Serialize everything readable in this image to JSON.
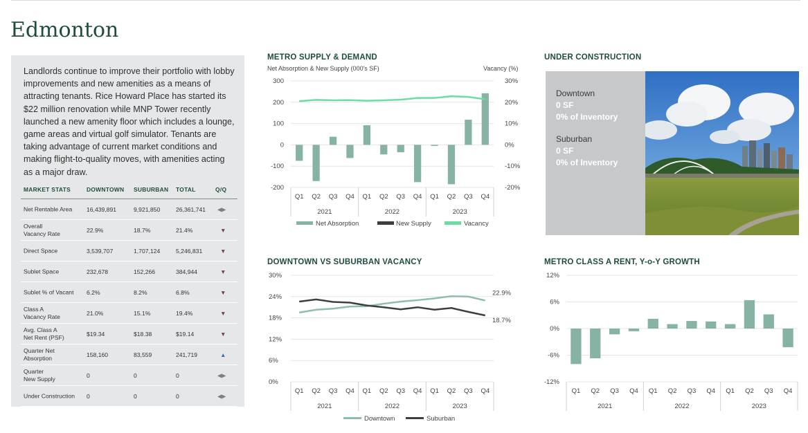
{
  "page": {
    "city": "Edmonton"
  },
  "intro": "Landlords continue to improve their portfolio with lobby improvements and new amenities as a means of attracting tenants. Rice Howard Place has started its $22 million renovation while MNP Tower recently launched a new amenity floor which includes a lounge, game areas and virtual golf simulator. Tenants are taking advantage of current market conditions and making flight-to-quality moves, with amenities acting as a major draw.",
  "market_stats": {
    "headers": [
      "MARKET STATS",
      "DOWNTOWN",
      "SUBURBAN",
      "TOTAL",
      "Q/Q"
    ],
    "rows": [
      {
        "label": "Net Rentable Area",
        "downtown": "16,439,891",
        "suburban": "9,921,850",
        "total": "26,361,741",
        "qq": "flat"
      },
      {
        "label": "Overall\nVacancy Rate",
        "downtown": "22.9%",
        "suburban": "18.7%",
        "total": "21.4%",
        "qq": "down"
      },
      {
        "label": "Direct Space",
        "downtown": "3,539,707",
        "suburban": "1,707,124",
        "total": "5,246,831",
        "qq": "down"
      },
      {
        "label": "Sublet Space",
        "downtown": "232,678",
        "suburban": "152,266",
        "total": "384,944",
        "qq": "down"
      },
      {
        "label": "Sublet % of Vacant",
        "downtown": "6.2%",
        "suburban": "8.2%",
        "total": "6.8%",
        "qq": "down"
      },
      {
        "label": "Class A\nVacancy Rate",
        "downtown": "21.0%",
        "suburban": "15.1%",
        "total": "19.4%",
        "qq": "down"
      },
      {
        "label": "Avg. Class A\nNet Rent (PSF)",
        "downtown": "$19.34",
        "suburban": "$18.38",
        "total": "$19.14",
        "qq": "down"
      },
      {
        "label": "Quarter Net\nAbsorption",
        "downtown": "158,160",
        "suburban": "83,559",
        "total": "241,719",
        "qq": "up"
      },
      {
        "label": "Quarter\nNew Supply",
        "downtown": "0",
        "suburban": "0",
        "total": "0",
        "qq": "flat"
      },
      {
        "label": "Under Construction",
        "downtown": "0",
        "suburban": "0",
        "total": "0",
        "qq": "flat"
      }
    ]
  },
  "colors": {
    "green_dark": "#1e4d3a",
    "bar": "#86b3a4",
    "vacancy": "#6edba1",
    "supply": "#3c3f41",
    "arrow_down": "#7a3b61",
    "arrow_up": "#3f6fb0",
    "arrow_flat": "#7d7d7d"
  },
  "under_construction": {
    "title": "UNDER CONSTRUCTION",
    "downtown_label": "Downtown",
    "downtown_sf": "0 SF",
    "downtown_inv": "0% of Inventory",
    "suburban_label": "Suburban",
    "suburban_sf": "0 SF",
    "suburban_inv": "0% of Inventory"
  },
  "chart_data": [
    {
      "id": "supply_demand",
      "type": "bar",
      "title": "METRO SUPPLY & DEMAND",
      "ylabel": "Net Absorption & New Supply (000's SF)",
      "y2label": "Vacancy (%)",
      "categories": [
        "Q1",
        "Q2",
        "Q3",
        "Q4",
        "Q1",
        "Q2",
        "Q3",
        "Q4",
        "Q1",
        "Q2",
        "Q3",
        "Q4"
      ],
      "groups": [
        "2021",
        "2022",
        "2023"
      ],
      "ylim": [
        -200,
        300
      ],
      "yticks": [
        300,
        200,
        100,
        0,
        -100,
        -200
      ],
      "y2lim": [
        -20,
        30
      ],
      "y2ticks": [
        "30%",
        "20%",
        "10%",
        "0%",
        "-10%",
        "-20%"
      ],
      "legend": [
        "Net Absorption",
        "New Supply",
        "Vacancy"
      ],
      "series": [
        {
          "name": "Net Absorption",
          "type": "bar",
          "values": [
            -75,
            -170,
            38,
            -62,
            92,
            -45,
            -35,
            -175,
            -5,
            -185,
            118,
            242
          ]
        },
        {
          "name": "New Supply",
          "type": "bar",
          "values": [
            0,
            0,
            0,
            0,
            0,
            0,
            0,
            0,
            0,
            0,
            0,
            0
          ]
        },
        {
          "name": "Vacancy",
          "type": "line",
          "values": [
            20.5,
            21.1,
            20.9,
            21.0,
            20.7,
            20.9,
            21.2,
            22.0,
            22.0,
            22.8,
            22.5,
            21.4
          ]
        }
      ]
    },
    {
      "id": "dt_sub_vacancy",
      "type": "line",
      "title": "DOWNTOWN VS SUBURBAN VACANCY",
      "categories": [
        "Q1",
        "Q2",
        "Q3",
        "Q4",
        "Q1",
        "Q2",
        "Q3",
        "Q4",
        "Q1",
        "Q2",
        "Q3",
        "Q4"
      ],
      "groups": [
        "2021",
        "2022",
        "2023"
      ],
      "ylim": [
        0,
        30
      ],
      "yticks": [
        "30%",
        "24%",
        "18%",
        "12%",
        "6%",
        "0%"
      ],
      "legend": [
        "Downtown",
        "Suburban"
      ],
      "end_labels": [
        "22.9%",
        "18.7%"
      ],
      "series": [
        {
          "name": "Downtown",
          "values": [
            19.5,
            20.3,
            20.6,
            21.2,
            21.3,
            22.0,
            22.6,
            23.0,
            23.5,
            24.1,
            24.0,
            22.9
          ]
        },
        {
          "name": "Suburban",
          "values": [
            22.6,
            23.2,
            22.5,
            22.3,
            21.5,
            21.0,
            20.4,
            21.0,
            20.3,
            20.8,
            19.7,
            18.7
          ]
        }
      ]
    },
    {
      "id": "class_a_rent",
      "type": "bar",
      "title": "METRO CLASS A RENT, Y-o-Y GROWTH",
      "categories": [
        "Q1",
        "Q2",
        "Q3",
        "Q4",
        "Q1",
        "Q2",
        "Q3",
        "Q4",
        "Q1",
        "Q2",
        "Q3",
        "Q4"
      ],
      "groups": [
        "2021",
        "2022",
        "2023"
      ],
      "ylim": [
        -12,
        12
      ],
      "yticks": [
        "12%",
        "6%",
        "0%",
        "-6%",
        "-12%"
      ],
      "series": [
        {
          "name": "",
          "values": [
            -8.0,
            -6.7,
            -1.3,
            -0.6,
            2.2,
            1.0,
            1.7,
            1.6,
            1.0,
            6.4,
            3.2,
            -4.2
          ]
        }
      ]
    }
  ]
}
